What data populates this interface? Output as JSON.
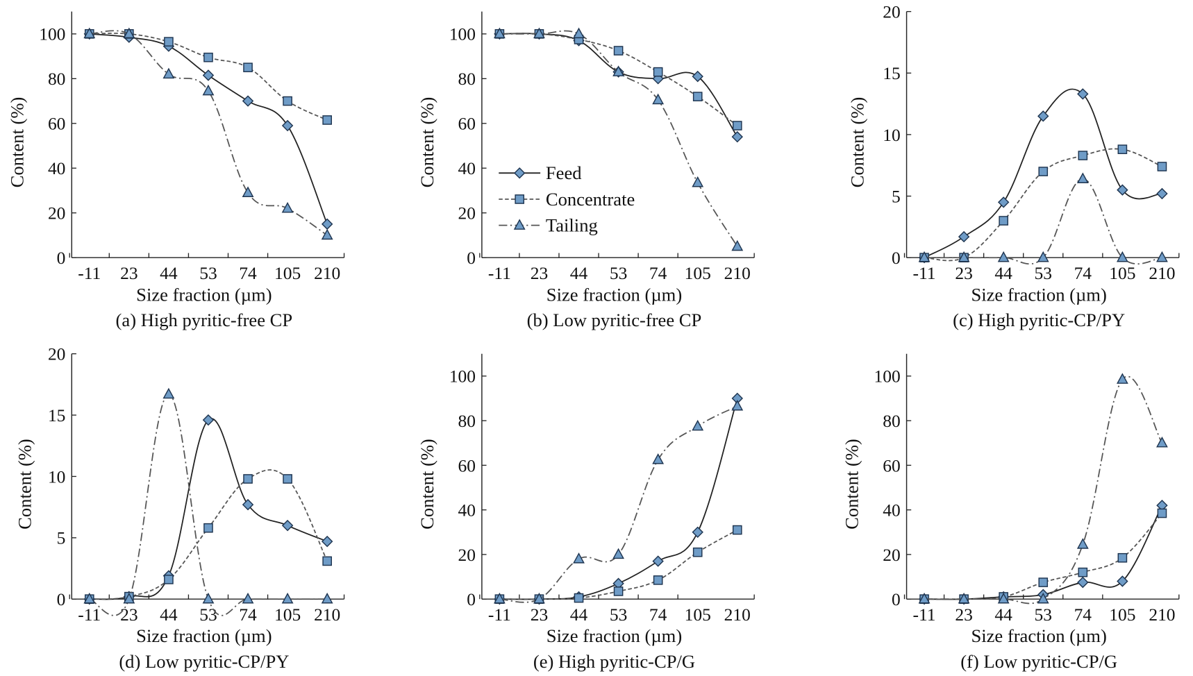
{
  "colors": {
    "marker_fill": "#6f9cc7",
    "marker_stroke": "#1f3550",
    "line": "#222222",
    "line_gray": "#555555"
  },
  "chart_data": [
    {
      "type": "line",
      "id": "a",
      "title": "(a) High pyritic-free CP",
      "xlabel": "Size fraction (µm)",
      "ylabel": "Content (%)",
      "categories": [
        "-11",
        "23",
        "44",
        "53",
        "74",
        "105",
        "210"
      ],
      "ylim": [
        0,
        110
      ],
      "yticks": [
        0,
        20,
        40,
        60,
        80,
        100
      ],
      "grid": false,
      "series": [
        {
          "name": "Feed",
          "values": [
            100,
            98.5,
            94.5,
            81.5,
            70,
            59,
            15
          ]
        },
        {
          "name": "Concentrate",
          "values": [
            100,
            100,
            96.5,
            89.5,
            85,
            70,
            61.5
          ]
        },
        {
          "name": "Tailing",
          "values": [
            100,
            100,
            82,
            74.5,
            29,
            22,
            10
          ]
        }
      ]
    },
    {
      "type": "line",
      "id": "b",
      "title": "(b) Low pyritic-free CP",
      "xlabel": "Size fraction (µm)",
      "ylabel": "Content (%)",
      "categories": [
        "-11",
        "23",
        "44",
        "53",
        "74",
        "105",
        "210"
      ],
      "ylim": [
        0,
        110
      ],
      "yticks": [
        0,
        20,
        40,
        60,
        80,
        100
      ],
      "grid": false,
      "legend": {
        "placement": "center-left",
        "entries": [
          "Feed",
          "Concentrate",
          "Tailing"
        ]
      },
      "series": [
        {
          "name": "Feed",
          "values": [
            100,
            100,
            97,
            83,
            80,
            81,
            54
          ]
        },
        {
          "name": "Concentrate",
          "values": [
            100,
            100,
            97.5,
            92.5,
            83,
            72,
            59
          ]
        },
        {
          "name": "Tailing",
          "values": [
            100,
            100,
            100,
            83,
            70.5,
            33.5,
            5
          ]
        }
      ]
    },
    {
      "type": "line",
      "id": "c",
      "title": "(c) High pyritic-CP/PY",
      "xlabel": "Size fraction (µm)",
      "ylabel": "Content (%)",
      "categories": [
        "-11",
        "23",
        "44",
        "53",
        "74",
        "105",
        "210"
      ],
      "ylim": [
        0,
        20
      ],
      "yticks": [
        0,
        5,
        10,
        15,
        20
      ],
      "grid": false,
      "series": [
        {
          "name": "Feed",
          "values": [
            0,
            1.7,
            4.5,
            11.5,
            13.3,
            5.5,
            5.2
          ]
        },
        {
          "name": "Concentrate",
          "values": [
            0,
            0,
            3,
            7,
            8.3,
            8.8,
            7.4
          ]
        },
        {
          "name": "Tailing",
          "values": [
            0,
            0,
            0,
            0,
            6.4,
            0,
            0
          ]
        }
      ]
    },
    {
      "type": "line",
      "id": "d",
      "title": "(d) Low pyritic-CP/PY",
      "xlabel": "Size fraction (µm)",
      "ylabel": "Content (%)",
      "categories": [
        "-11",
        "23",
        "44",
        "53",
        "74",
        "105",
        "210"
      ],
      "ylim": [
        0,
        20
      ],
      "yticks": [
        0,
        5,
        10,
        15,
        20
      ],
      "grid": false,
      "series": [
        {
          "name": "Feed",
          "values": [
            0,
            0.2,
            1.9,
            14.6,
            7.7,
            6,
            4.7
          ]
        },
        {
          "name": "Concentrate",
          "values": [
            0,
            0.2,
            1.6,
            5.8,
            9.8,
            9.8,
            3.1
          ]
        },
        {
          "name": "Tailing",
          "values": [
            0,
            0,
            16.7,
            0,
            0,
            0,
            0
          ]
        }
      ]
    },
    {
      "type": "line",
      "id": "e",
      "title": "(e) High pyritic-CP/G",
      "xlabel": "Size fraction (µm)",
      "ylabel": "Content (%)",
      "categories": [
        "-11",
        "23",
        "44",
        "53",
        "74",
        "105",
        "210"
      ],
      "ylim": [
        0,
        110
      ],
      "yticks": [
        0,
        20,
        40,
        60,
        80,
        100
      ],
      "grid": false,
      "series": [
        {
          "name": "Feed",
          "values": [
            0,
            0,
            1,
            7,
            17,
            30,
            90
          ]
        },
        {
          "name": "Concentrate",
          "values": [
            0,
            0,
            0.5,
            3.5,
            8.5,
            21,
            31
          ]
        },
        {
          "name": "Tailing",
          "values": [
            0,
            0,
            18,
            20,
            62.5,
            77.5,
            86.5
          ]
        }
      ]
    },
    {
      "type": "line",
      "id": "f",
      "title": "(f) Low pyritic-CP/G",
      "xlabel": "Size fraction (µm)",
      "ylabel": "Content (%)",
      "categories": [
        "-11",
        "23",
        "44",
        "53",
        "74",
        "105",
        "210"
      ],
      "ylim": [
        0,
        110
      ],
      "yticks": [
        0,
        20,
        40,
        60,
        80,
        100
      ],
      "grid": false,
      "series": [
        {
          "name": "Feed",
          "values": [
            0,
            0,
            1,
            2,
            7.5,
            8,
            42
          ]
        },
        {
          "name": "Concentrate",
          "values": [
            0,
            0,
            1,
            7.5,
            12,
            18.5,
            38.5
          ]
        },
        {
          "name": "Tailing",
          "values": [
            0,
            0,
            0,
            0,
            24.5,
            98.5,
            70
          ]
        }
      ]
    }
  ]
}
